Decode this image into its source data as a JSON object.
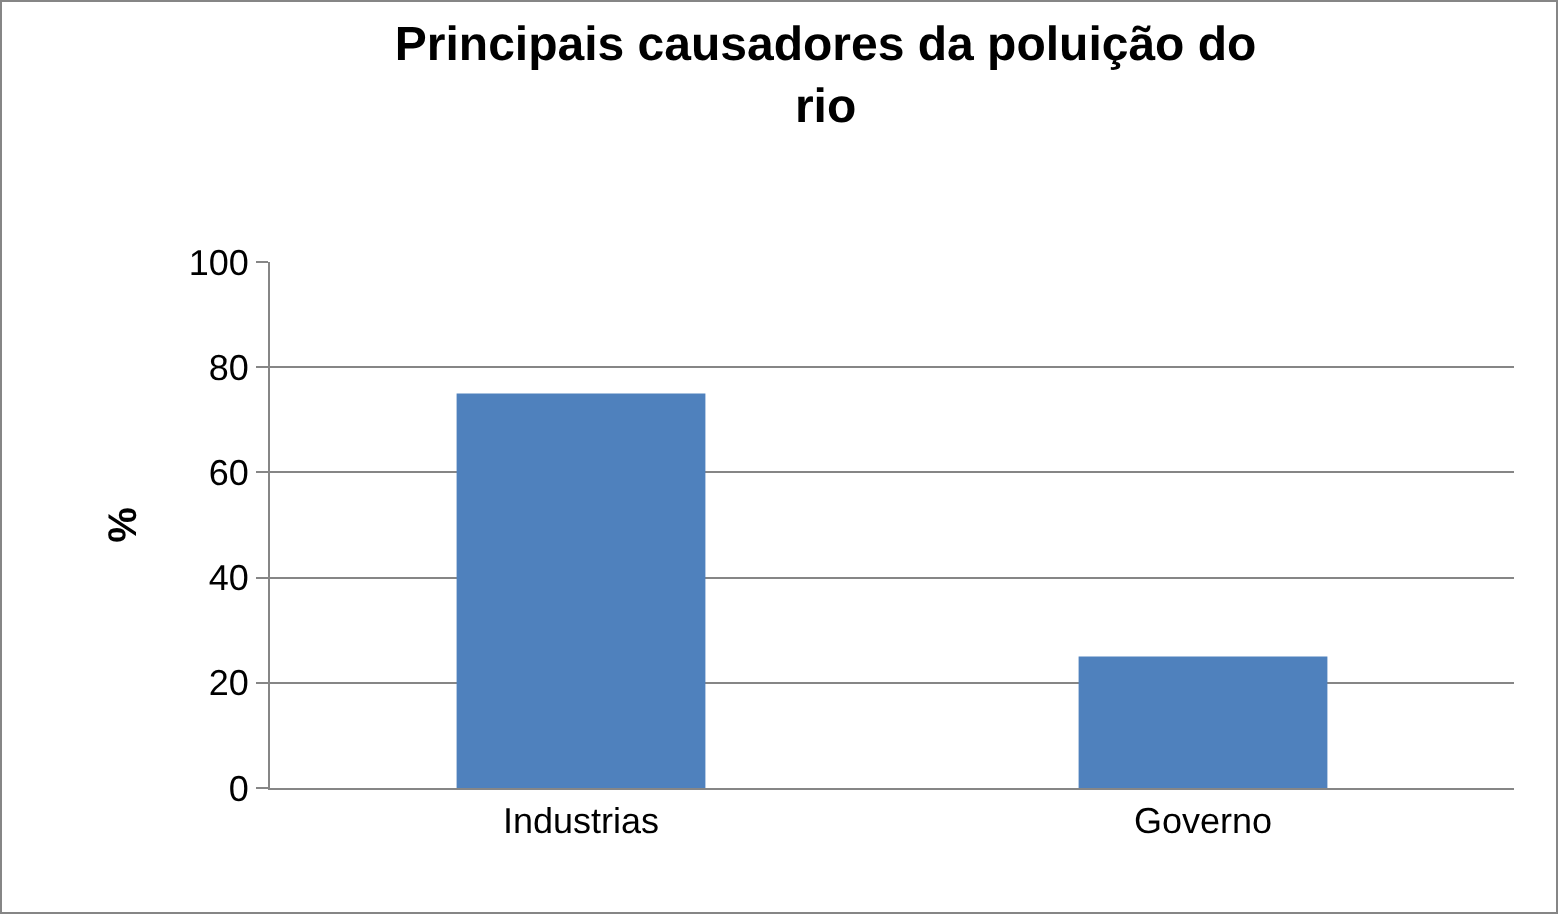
{
  "chart_data": {
    "type": "bar",
    "title": "Principais causadores da poluição do rio",
    "ylabel": "%",
    "categories": [
      "Industrias",
      "Governo"
    ],
    "values": [
      75,
      25
    ],
    "color": "#4f81bd",
    "ylim": [
      0,
      100
    ],
    "yticks": [
      0,
      20,
      40,
      60,
      80,
      100
    ],
    "grid": "y"
  }
}
